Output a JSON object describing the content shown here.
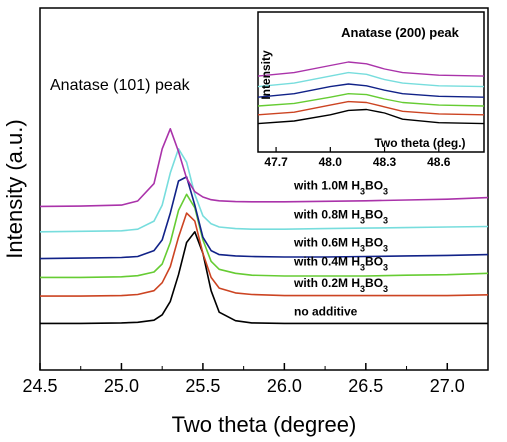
{
  "chart_data": [
    {
      "type": "line",
      "title": "",
      "xlabel": "Two theta (degree)",
      "ylabel": "Intensity (a.u.)",
      "annotation": "Anatase (101) peak",
      "xlim": [
        24.5,
        27.25
      ],
      "xticks": [
        "24.5",
        "25.0",
        "25.5",
        "26.0",
        "26.5",
        "27.0"
      ],
      "ylim": [
        0,
        1
      ],
      "grid": false,
      "x": [
        24.5,
        24.75,
        25.0,
        25.1,
        25.2,
        25.25,
        25.3,
        25.35,
        25.4,
        25.45,
        25.5,
        25.55,
        25.6,
        25.7,
        25.8,
        26.0,
        26.25,
        26.5,
        26.75,
        27.0,
        27.25
      ],
      "series": [
        {
          "name": "no additive",
          "color": "#000000",
          "label_parts": [
            "no additive"
          ],
          "values": [
            0.118,
            0.118,
            0.12,
            0.122,
            0.13,
            0.15,
            0.2,
            0.3,
            0.42,
            0.46,
            0.38,
            0.24,
            0.16,
            0.128,
            0.12,
            0.118,
            0.118,
            0.118,
            0.118,
            0.118,
            0.118
          ]
        },
        {
          "name": "with 0.2M H3BO3",
          "color": "#cc4422",
          "label_parts": [
            "with 0.2M H",
            "3",
            "BO",
            "3"
          ],
          "values": [
            0.22,
            0.22,
            0.222,
            0.226,
            0.24,
            0.27,
            0.33,
            0.44,
            0.53,
            0.5,
            0.38,
            0.29,
            0.25,
            0.232,
            0.226,
            0.222,
            0.222,
            0.222,
            0.222,
            0.222,
            0.225
          ]
        },
        {
          "name": "with 0.4M H3BO3",
          "color": "#66cc33",
          "label_parts": [
            "with 0.4M H",
            "3",
            "BO",
            "3"
          ],
          "values": [
            0.29,
            0.29,
            0.292,
            0.296,
            0.31,
            0.34,
            0.42,
            0.54,
            0.6,
            0.55,
            0.43,
            0.35,
            0.32,
            0.305,
            0.298,
            0.295,
            0.295,
            0.295,
            0.298,
            0.3,
            0.305
          ]
        },
        {
          "name": "with 0.6M H3BO3",
          "color": "#112288",
          "label_parts": [
            "with 0.6M H",
            "3",
            "BO",
            "3"
          ],
          "values": [
            0.36,
            0.362,
            0.364,
            0.368,
            0.39,
            0.43,
            0.53,
            0.65,
            0.665,
            0.56,
            0.44,
            0.39,
            0.375,
            0.37,
            0.368,
            0.366,
            0.366,
            0.368,
            0.37,
            0.372,
            0.375
          ]
        },
        {
          "name": "with 0.8M H3BO3",
          "color": "#77dddd",
          "label_parts": [
            "with 0.8M H",
            "3",
            "BO",
            "3"
          ],
          "values": [
            0.46,
            0.462,
            0.464,
            0.47,
            0.5,
            0.56,
            0.68,
            0.77,
            0.72,
            0.6,
            0.52,
            0.49,
            0.478,
            0.472,
            0.47,
            0.47,
            0.472,
            0.474,
            0.476,
            0.478,
            0.48
          ]
        },
        {
          "name": "with 1.0M H3BO3",
          "color": "#aa33aa",
          "label_parts": [
            "with 1.0M H",
            "3",
            "BO",
            "3"
          ],
          "values": [
            0.555,
            0.556,
            0.56,
            0.575,
            0.64,
            0.77,
            0.845,
            0.76,
            0.66,
            0.61,
            0.59,
            0.58,
            0.576,
            0.573,
            0.572,
            0.572,
            0.574,
            0.576,
            0.579,
            0.582,
            0.588
          ]
        }
      ]
    },
    {
      "type": "line",
      "title": "Anatase (200) peak",
      "xlabel": "Two theta (deg.)",
      "ylabel": "Intensity",
      "xlim": [
        47.6,
        48.85
      ],
      "xticks": [
        "47.7",
        "48.0",
        "48.3",
        "48.6"
      ],
      "ylim": [
        0,
        1
      ],
      "grid": false,
      "x": [
        47.6,
        47.8,
        48.0,
        48.1,
        48.2,
        48.3,
        48.4,
        48.6,
        48.85
      ],
      "series": [
        {
          "name": "no additive",
          "color": "#000000",
          "values": [
            0.05,
            0.08,
            0.15,
            0.2,
            0.21,
            0.17,
            0.1,
            0.06,
            0.05
          ]
        },
        {
          "name": "with 0.2M H3BO3",
          "color": "#cc4422",
          "values": [
            0.15,
            0.18,
            0.26,
            0.3,
            0.29,
            0.24,
            0.19,
            0.16,
            0.15
          ]
        },
        {
          "name": "with 0.4M H3BO3",
          "color": "#66cc33",
          "values": [
            0.25,
            0.28,
            0.35,
            0.39,
            0.38,
            0.33,
            0.29,
            0.26,
            0.25
          ]
        },
        {
          "name": "with 0.6M H3BO3",
          "color": "#112288",
          "values": [
            0.35,
            0.39,
            0.47,
            0.5,
            0.48,
            0.43,
            0.39,
            0.36,
            0.35
          ]
        },
        {
          "name": "with 0.8M H3BO3",
          "color": "#77dddd",
          "values": [
            0.47,
            0.51,
            0.59,
            0.63,
            0.61,
            0.55,
            0.51,
            0.48,
            0.47
          ]
        },
        {
          "name": "with 1.0M H3BO3",
          "color": "#aa33aa",
          "values": [
            0.59,
            0.63,
            0.71,
            0.75,
            0.73,
            0.67,
            0.63,
            0.6,
            0.59
          ]
        }
      ]
    }
  ]
}
